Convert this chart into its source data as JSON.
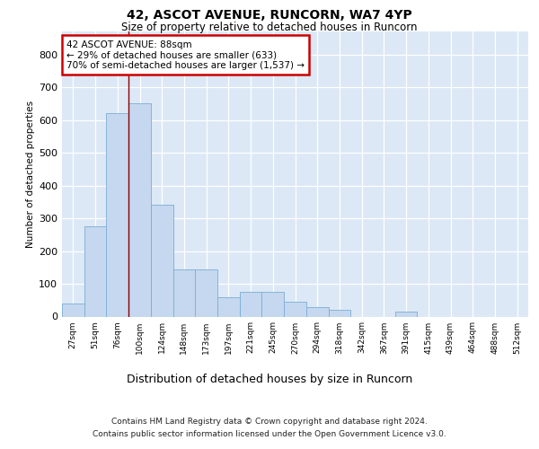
{
  "title_line1": "42, ASCOT AVENUE, RUNCORN, WA7 4YP",
  "title_line2": "Size of property relative to detached houses in Runcorn",
  "xlabel": "Distribution of detached houses by size in Runcorn",
  "ylabel": "Number of detached properties",
  "footnote_line1": "Contains HM Land Registry data © Crown copyright and database right 2024.",
  "footnote_line2": "Contains public sector information licensed under the Open Government Licence v3.0.",
  "bin_labels": [
    "27sqm",
    "51sqm",
    "76sqm",
    "100sqm",
    "124sqm",
    "148sqm",
    "173sqm",
    "197sqm",
    "221sqm",
    "245sqm",
    "270sqm",
    "294sqm",
    "318sqm",
    "342sqm",
    "367sqm",
    "391sqm",
    "415sqm",
    "439sqm",
    "464sqm",
    "488sqm",
    "512sqm"
  ],
  "bar_heights": [
    40,
    275,
    620,
    650,
    340,
    145,
    145,
    60,
    75,
    75,
    45,
    30,
    20,
    0,
    0,
    15,
    0,
    0,
    0,
    0,
    0
  ],
  "bar_color": "#c5d8ef",
  "bar_edge_color": "#7aadd4",
  "vline_x": 2.5,
  "annotation_text": "42 ASCOT AVENUE: 88sqm\n← 29% of detached houses are smaller (633)\n70% of semi-detached houses are larger (1,537) →",
  "annotation_box_facecolor": "white",
  "annotation_box_edgecolor": "#cc0000",
  "ylim": [
    0,
    870
  ],
  "yticks": [
    0,
    100,
    200,
    300,
    400,
    500,
    600,
    700,
    800
  ],
  "bg_color": "#ffffff",
  "plot_bg_color": "#dce8f5",
  "grid_color": "#ffffff",
  "title1_fontsize": 10,
  "title2_fontsize": 8.5,
  "ylabel_fontsize": 7.5,
  "xlabel_fontsize": 9,
  "ytick_fontsize": 8,
  "xtick_fontsize": 6.5,
  "annot_fontsize": 7.5,
  "footnote_fontsize": 6.5
}
